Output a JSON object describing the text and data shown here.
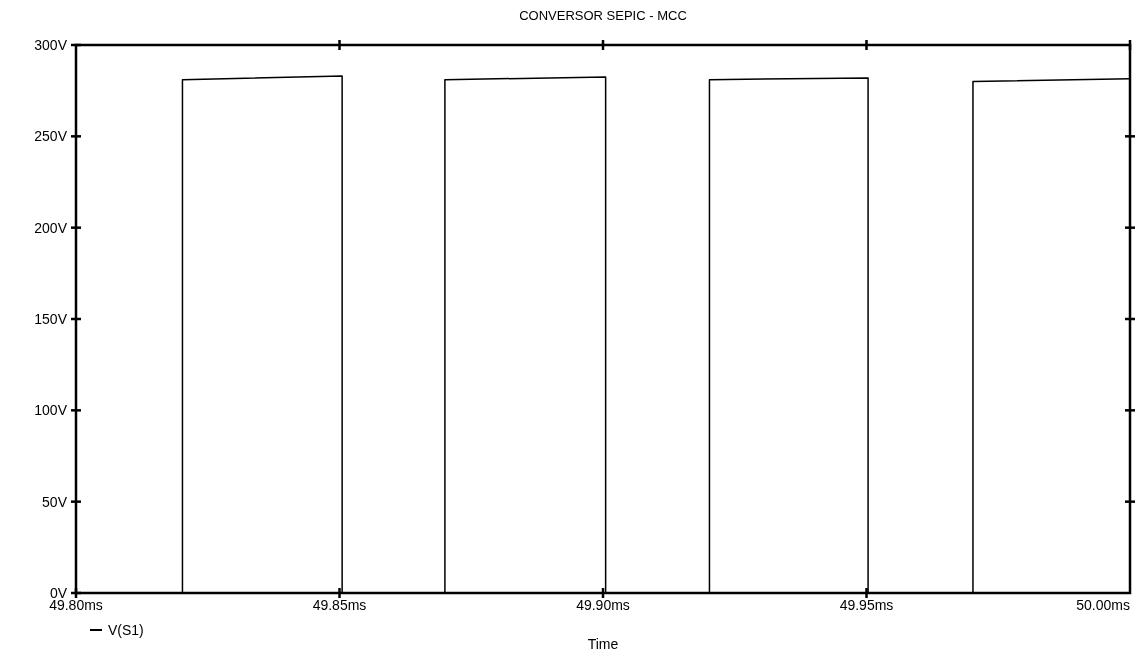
{
  "chart_data": {
    "type": "line",
    "title": "CONVERSOR SEPIC - MCC",
    "xlabel": "Time",
    "xlim": [
      49.8,
      50.0
    ],
    "ylim": [
      0,
      300
    ],
    "xticks": [
      {
        "value": 49.8,
        "label": "49.80ms"
      },
      {
        "value": 49.85,
        "label": "49.85ms"
      },
      {
        "value": 49.9,
        "label": "49.90ms"
      },
      {
        "value": 49.95,
        "label": "49.95ms"
      },
      {
        "value": 50.0,
        "label": "50.00ms"
      }
    ],
    "yticks": [
      {
        "value": 0,
        "label": "0V"
      },
      {
        "value": 50,
        "label": "50V"
      },
      {
        "value": 100,
        "label": "100V"
      },
      {
        "value": 150,
        "label": "150V"
      },
      {
        "value": 200,
        "label": "200V"
      },
      {
        "value": 250,
        "label": "250V"
      },
      {
        "value": 300,
        "label": "300V"
      }
    ],
    "grid": false,
    "legend": "bottom left",
    "marker": "none",
    "line_style": "solid",
    "series": [
      {
        "name": "V(S1)",
        "color": "#000000",
        "x": [
          49.8,
          49.8,
          49.8202,
          49.8202,
          49.8505,
          49.8505,
          49.87,
          49.87,
          49.9005,
          49.9005,
          49.9202,
          49.9202,
          49.9503,
          49.9503,
          49.9702,
          49.9702,
          50.0
        ],
        "values": [
          282,
          0,
          0,
          281,
          283,
          0,
          0,
          281,
          282.5,
          0,
          0,
          281,
          282,
          0,
          0,
          280,
          281.5
        ]
      }
    ]
  }
}
